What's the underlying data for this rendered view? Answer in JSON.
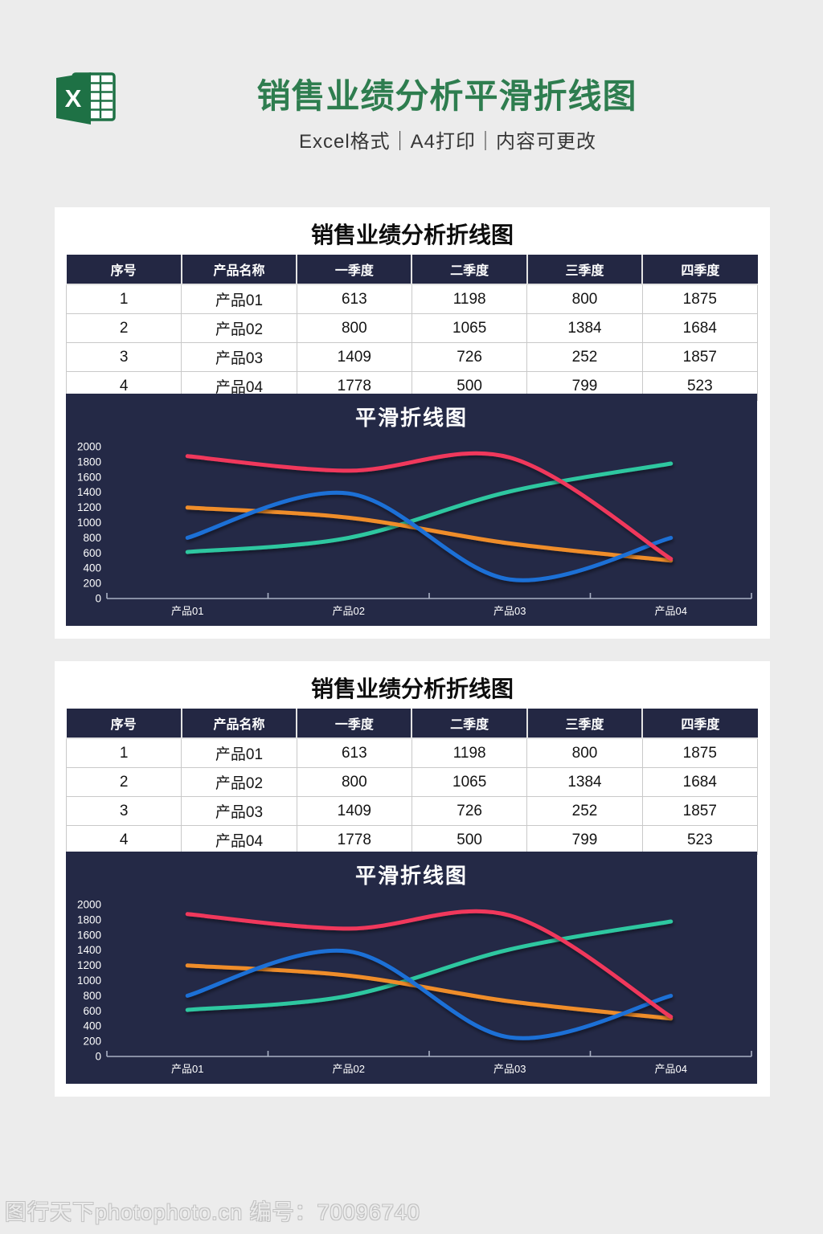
{
  "header": {
    "title": "销售业绩分析平滑折线图",
    "subtitle": "Excel格式｜A4打印｜内容可更改",
    "logo_letter": "X",
    "title_color": "#2e7d4f",
    "logo_green": "#1e7145"
  },
  "panel": {
    "table_title": "销售业绩分析折线图",
    "columns": [
      "序号",
      "产品名称",
      "一季度",
      "二季度",
      "三季度",
      "四季度"
    ],
    "rows": [
      [
        "1",
        "产品01",
        "613",
        "1198",
        "800",
        "1875"
      ],
      [
        "2",
        "产品02",
        "800",
        "1065",
        "1384",
        "1684"
      ],
      [
        "3",
        "产品03",
        "1409",
        "726",
        "252",
        "1857"
      ],
      [
        "4",
        "产品04",
        "1778",
        "500",
        "799",
        "523"
      ]
    ],
    "chart_title": "平滑折线图"
  },
  "chart_data": {
    "type": "line",
    "smooth": true,
    "title": "平滑折线图",
    "categories": [
      "产品01",
      "产品02",
      "产品03",
      "产品04"
    ],
    "series": [
      {
        "name": "一季度",
        "color": "#2fc7a0",
        "values": [
          613,
          800,
          1409,
          1778
        ]
      },
      {
        "name": "二季度",
        "color": "#ef8d2a",
        "values": [
          1198,
          1065,
          726,
          500
        ]
      },
      {
        "name": "三季度",
        "color": "#1e6fd6",
        "values": [
          800,
          1384,
          252,
          799
        ]
      },
      {
        "name": "四季度",
        "color": "#f0395c",
        "values": [
          1875,
          1684,
          1857,
          523
        ]
      }
    ],
    "ylim": [
      0,
      2000
    ],
    "ytick_step": 200,
    "legend": false,
    "grid": false,
    "background": "#242946",
    "axis_color": "#a9b1c4",
    "label_color": "#ffffff"
  },
  "watermark": "图行天下photophoto.cn 编号：70096740"
}
